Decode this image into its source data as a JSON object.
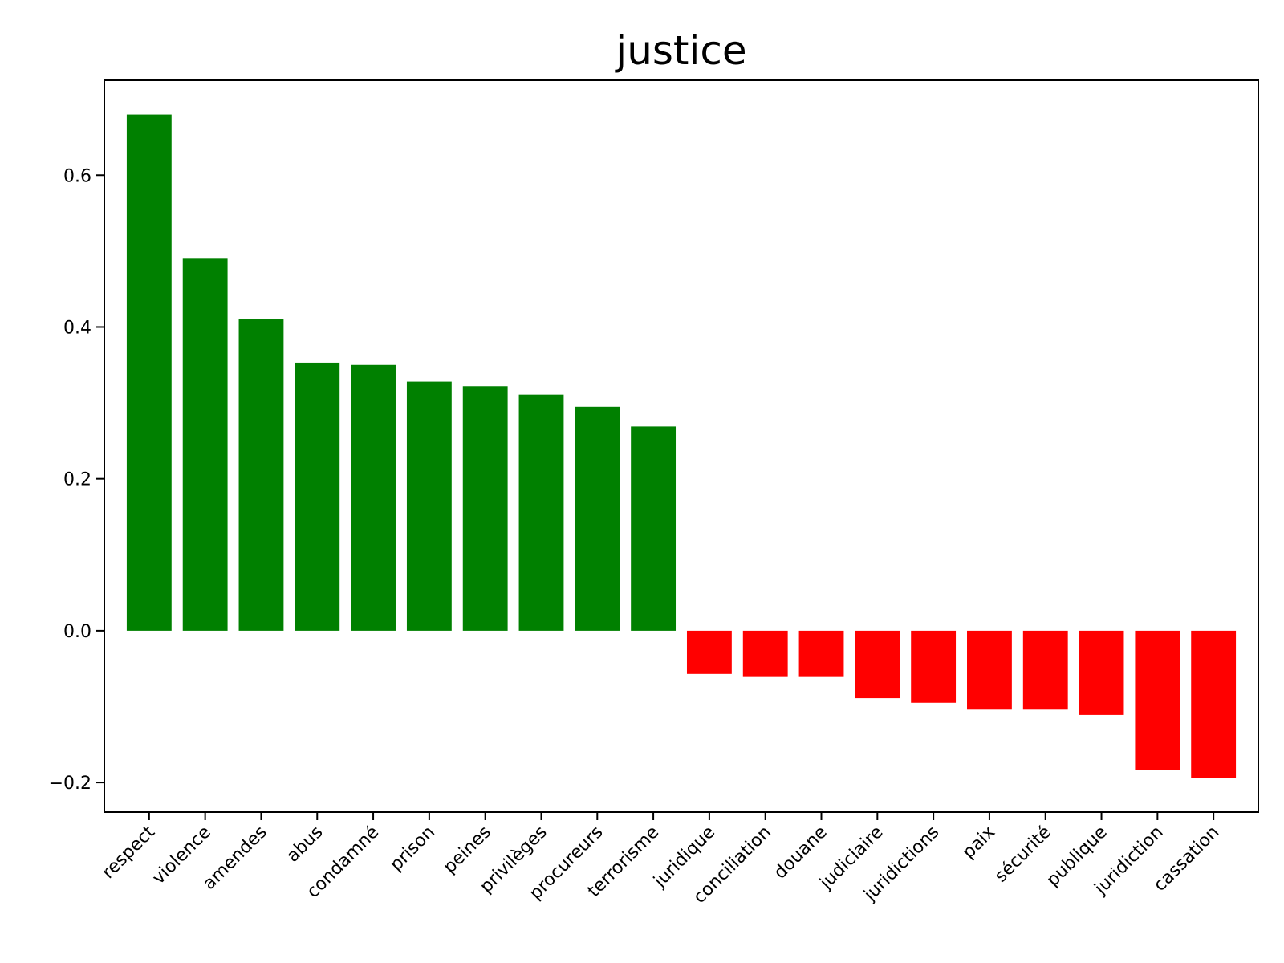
{
  "chart_data": {
    "type": "bar",
    "title": "justice",
    "xlabel": "",
    "ylabel": "",
    "categories": [
      "respect",
      "violence",
      "amendes",
      "abus",
      "condamné",
      "prison",
      "peines",
      "privilèges",
      "procureurs",
      "terrorisme",
      "juridique",
      "conciliation",
      "douane",
      "judiciaire",
      "juridictions",
      "paix",
      "sécurité",
      "publique",
      "juridiction",
      "cassation"
    ],
    "values": [
      0.68,
      0.49,
      0.41,
      0.353,
      0.35,
      0.328,
      0.322,
      0.311,
      0.295,
      0.269,
      -0.057,
      -0.06,
      -0.06,
      -0.089,
      -0.095,
      -0.104,
      -0.104,
      -0.111,
      -0.184,
      -0.194
    ],
    "ylim": [
      -0.239,
      0.725
    ],
    "yticks": [
      -0.2,
      0.0,
      0.2,
      0.4,
      0.6
    ],
    "ytick_labels": [
      "−0.2",
      "0.0",
      "0.2",
      "0.4",
      "0.6"
    ],
    "positive_color": "#008000",
    "negative_color": "#ff0000",
    "grid": false,
    "legend": "none"
  }
}
